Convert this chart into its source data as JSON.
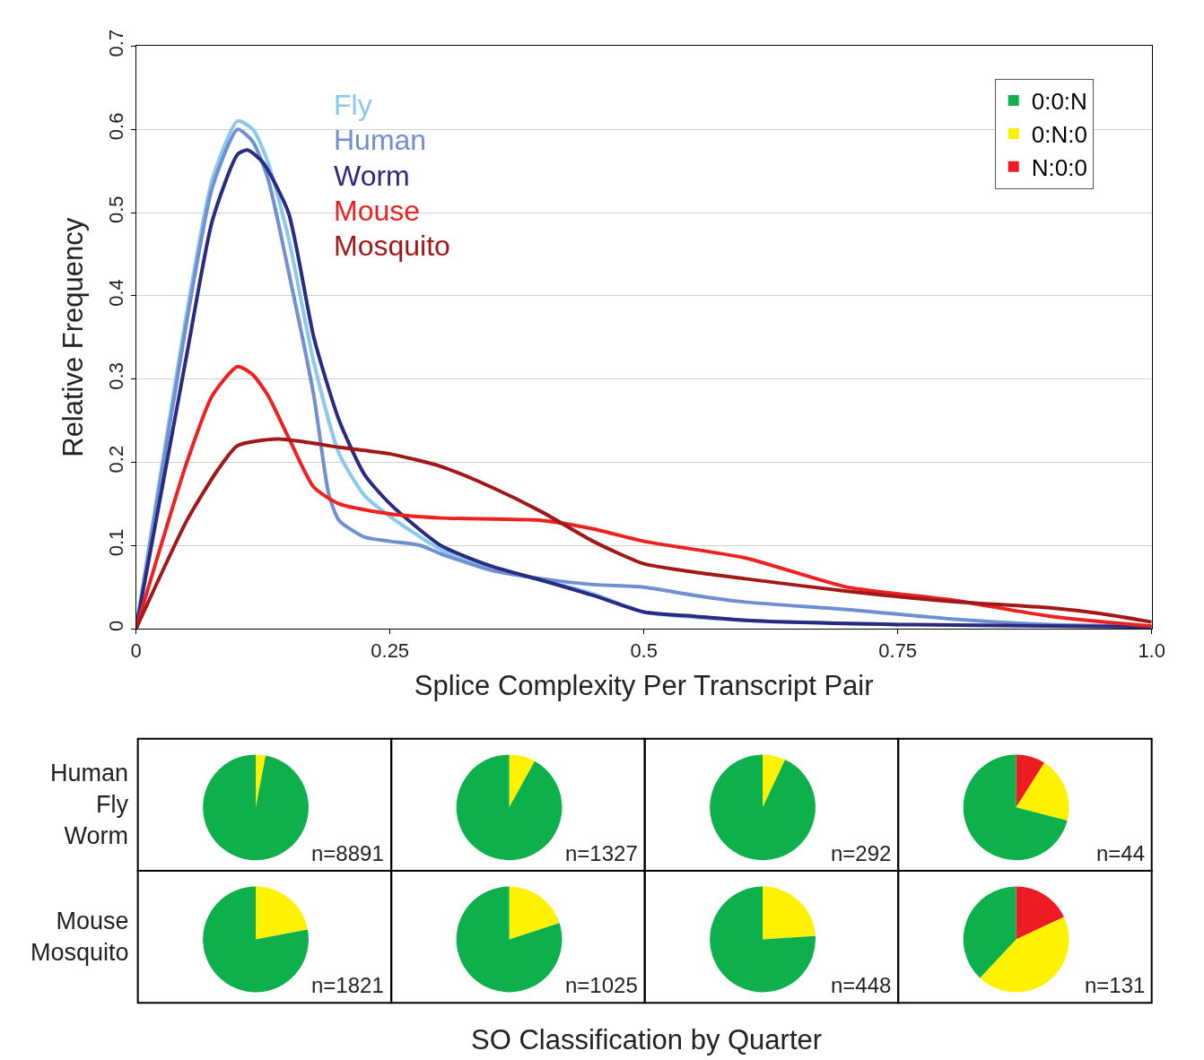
{
  "chart_data": [
    {
      "type": "line",
      "xlabel": "Splice Complexity Per Transcript Pair",
      "ylabel": "Relative Frequency",
      "xlim": [
        0,
        1
      ],
      "ylim": [
        0,
        0.7
      ],
      "xticks": [
        0,
        0.25,
        0.5,
        0.75,
        {
          "value": 1,
          "label": "1.0"
        }
      ],
      "yticks": [
        0,
        0.1,
        0.2,
        0.3,
        0.4,
        0.5,
        0.6,
        0.7
      ],
      "grid": "y",
      "marker": "none",
      "line_style": "solid",
      "series": [
        {
          "name": "Fly",
          "color": "#8ac8ee",
          "x": [
            0,
            0.05,
            0.075,
            0.1,
            0.115,
            0.13,
            0.15,
            0.175,
            0.2,
            0.225,
            0.25,
            0.3,
            0.35,
            0.4,
            0.45,
            0.5,
            0.6,
            0.75
          ],
          "values": [
            0,
            0.38,
            0.54,
            0.61,
            0.6,
            0.56,
            0.47,
            0.32,
            0.21,
            0.16,
            0.135,
            0.095,
            0.072,
            0.058,
            0.042,
            0.02,
            0.01,
            0.005
          ]
        },
        {
          "name": "Human",
          "color": "#6f8fd0",
          "x": [
            0,
            0.05,
            0.075,
            0.1,
            0.115,
            0.13,
            0.15,
            0.175,
            0.19,
            0.2,
            0.225,
            0.25,
            0.28,
            0.3,
            0.35,
            0.4,
            0.45,
            0.5,
            0.55,
            0.6,
            0.7,
            0.8,
            0.9,
            1
          ],
          "values": [
            0,
            0.37,
            0.53,
            0.6,
            0.585,
            0.54,
            0.43,
            0.28,
            0.16,
            0.13,
            0.11,
            0.105,
            0.1,
            0.09,
            0.07,
            0.06,
            0.053,
            0.05,
            0.04,
            0.032,
            0.023,
            0.012,
            0.005,
            0.003
          ]
        },
        {
          "name": "Worm",
          "color": "#2a2a80",
          "x": [
            0,
            0.05,
            0.075,
            0.1,
            0.11,
            0.125,
            0.15,
            0.175,
            0.2,
            0.225,
            0.25,
            0.3,
            0.35,
            0.4,
            0.45,
            0.5,
            0.55,
            0.6,
            0.75,
            1
          ],
          "values": [
            0,
            0.33,
            0.49,
            0.57,
            0.575,
            0.56,
            0.5,
            0.35,
            0.25,
            0.185,
            0.15,
            0.1,
            0.075,
            0.058,
            0.04,
            0.02,
            0.015,
            0.01,
            0.005,
            0.002
          ]
        },
        {
          "name": "Mouse",
          "color": "#ee2020",
          "x": [
            0,
            0.05,
            0.075,
            0.1,
            0.115,
            0.13,
            0.15,
            0.175,
            0.2,
            0.25,
            0.3,
            0.4,
            0.45,
            0.5,
            0.6,
            0.7,
            0.8,
            0.9,
            1
          ],
          "values": [
            0,
            0.2,
            0.28,
            0.315,
            0.305,
            0.28,
            0.23,
            0.17,
            0.15,
            0.138,
            0.133,
            0.13,
            0.12,
            0.105,
            0.085,
            0.05,
            0.035,
            0.015,
            0.003
          ]
        },
        {
          "name": "Mosquito",
          "color": "#a01818",
          "x": [
            0,
            0.05,
            0.08,
            0.1,
            0.14,
            0.2,
            0.25,
            0.3,
            0.35,
            0.4,
            0.45,
            0.5,
            0.55,
            0.6,
            0.7,
            0.8,
            0.9,
            0.95,
            1
          ],
          "values": [
            0,
            0.13,
            0.19,
            0.22,
            0.228,
            0.218,
            0.21,
            0.195,
            0.17,
            0.14,
            0.105,
            0.078,
            0.068,
            0.06,
            0.045,
            0.033,
            0.025,
            0.018,
            0.008
          ]
        }
      ]
    },
    {
      "type": "pie",
      "categories": [
        "N:0:0",
        "0:N:0",
        "0:0:N"
      ],
      "values": [
        0,
        3,
        97
      ],
      "colors": [
        "#ed1c24",
        "#fff200",
        "#0db04b"
      ],
      "annotations": [
        "n=8891",
        "Human\nFly\nWorm"
      ],
      "legend": "top right"
    },
    {
      "type": "pie",
      "categories": [
        null,
        null,
        null
      ],
      "values": [
        0,
        8,
        92
      ],
      "colors": [
        "#ed1c24",
        "#fff200",
        "#0db04b"
      ],
      "annotations": [
        "n=1327"
      ]
    },
    {
      "type": "pie",
      "categories": [
        null,
        null,
        null
      ],
      "values": [
        0,
        7,
        93
      ],
      "colors": [
        "#ed1c24",
        "#fff200",
        "#0db04b"
      ],
      "annotations": [
        "n=292"
      ]
    },
    {
      "type": "pie",
      "categories": [
        null,
        null,
        null
      ],
      "values": [
        9,
        20,
        71
      ],
      "colors": [
        "#ed1c24",
        "#fff200",
        "#0db04b"
      ],
      "annotations": [
        "n=44"
      ]
    },
    {
      "type": "pie",
      "categories": [
        null,
        null,
        null
      ],
      "values": [
        0,
        22,
        78
      ],
      "colors": [
        "#ed1c24",
        "#fff200",
        "#0db04b"
      ],
      "annotations": [
        "n=1821",
        "Mouse\nMosquito",
        "SO Classification by Quarter"
      ]
    },
    {
      "type": "pie",
      "categories": [
        null,
        null,
        null
      ],
      "values": [
        0,
        20,
        80
      ],
      "colors": [
        "#ed1c24",
        "#fff200",
        "#0db04b"
      ],
      "annotations": [
        "n=1025"
      ]
    },
    {
      "type": "pie",
      "categories": [
        null,
        null,
        null
      ],
      "values": [
        0,
        24,
        76
      ],
      "colors": [
        "#ed1c24",
        "#fff200",
        "#0db04b"
      ],
      "annotations": [
        "n=448"
      ]
    },
    {
      "type": "pie",
      "categories": [
        null,
        null,
        null
      ],
      "values": [
        18,
        44,
        38
      ],
      "colors": [
        "#ed1c24",
        "#fff200",
        "#0db04b"
      ],
      "annotations": [
        "n=131"
      ]
    }
  ]
}
